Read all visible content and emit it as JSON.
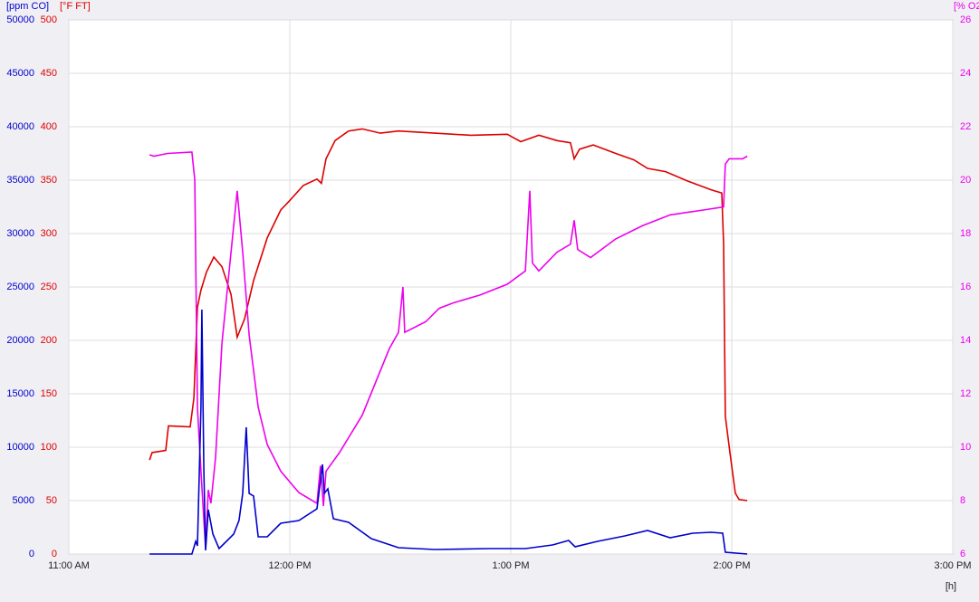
{
  "chart_data": {
    "type": "line",
    "y_label": "[ppm CO]",
    "y2_label": "[°F FT]",
    "y3_label": "[% O2",
    "x_label": "[h]",
    "xlim": [
      11,
      15
    ],
    "xticks": [
      {
        "value": 11,
        "label": "11:00 AM"
      },
      {
        "value": 12,
        "label": "12:00 PM"
      },
      {
        "value": 13,
        "label": "1:00 PM"
      },
      {
        "value": 14,
        "label": "2:00 PM"
      },
      {
        "value": 15,
        "label": "3:00 PM"
      }
    ],
    "ylim": [
      0,
      50000
    ],
    "yticks": [
      0,
      5000,
      10000,
      15000,
      20000,
      25000,
      30000,
      35000,
      40000,
      45000,
      50000
    ],
    "y_color": "#0000cc",
    "y2lim": [
      0,
      500
    ],
    "y2ticks": [
      0,
      50,
      100,
      150,
      200,
      250,
      300,
      350,
      400,
      450,
      500
    ],
    "y2_color": "#dd0000",
    "y3lim": [
      6,
      26
    ],
    "y3ticks": [
      6,
      8,
      10,
      12,
      14,
      16,
      18,
      20,
      22,
      24,
      26
    ],
    "y3_color": "#ee00ee",
    "grid": true,
    "series": [
      {
        "color": "#dd0000",
        "axis": "y2",
        "x": [
          11.365,
          11.377,
          11.4385,
          11.451,
          11.549,
          11.566,
          11.582,
          11.598,
          11.623,
          11.656,
          11.693,
          11.734,
          11.762,
          11.795,
          11.836,
          11.898,
          11.959,
          12.0,
          12.061,
          12.123,
          12.143,
          12.164,
          12.205,
          12.266,
          12.328,
          12.41,
          12.492,
          12.656,
          12.82,
          12.984,
          13.045,
          13.127,
          13.209,
          13.27,
          13.287,
          13.311,
          13.373,
          13.475,
          13.557,
          13.619,
          13.701,
          13.803,
          13.906,
          13.955,
          13.963,
          13.971,
          13.992,
          14.016,
          14.033,
          14.07
        ],
        "values": [
          88,
          95,
          97,
          120,
          119,
          146,
          231,
          247,
          264,
          278,
          269,
          243,
          203,
          220,
          256,
          296,
          322,
          331,
          345,
          351,
          347,
          370,
          387,
          396,
          398,
          394,
          396,
          394,
          392,
          393,
          386,
          392,
          387,
          385,
          370,
          379,
          383,
          375,
          369,
          361,
          358,
          349,
          341,
          338,
          290,
          129,
          95,
          57,
          51,
          50
        ]
      },
      {
        "color": "#ee00ee",
        "axis": "y3",
        "x": [
          11.365,
          11.385,
          11.447,
          11.557,
          11.57,
          11.582,
          11.598,
          11.619,
          11.631,
          11.643,
          11.664,
          11.693,
          11.734,
          11.762,
          11.787,
          11.816,
          11.857,
          11.898,
          11.959,
          12.041,
          12.123,
          12.139,
          12.152,
          12.164,
          12.225,
          12.328,
          12.451,
          12.492,
          12.512,
          12.52,
          12.615,
          12.676,
          12.738,
          12.861,
          12.984,
          13.066,
          13.086,
          13.098,
          13.127,
          13.209,
          13.27,
          13.287,
          13.303,
          13.361,
          13.475,
          13.598,
          13.721,
          13.885,
          13.963,
          13.971,
          13.988,
          14.049,
          14.07
        ],
        "values": [
          20.95,
          20.9,
          21.0,
          21.05,
          20.0,
          11.5,
          9.1,
          6.2,
          8.4,
          7.9,
          9.6,
          13.9,
          17.3,
          19.6,
          17.3,
          14.2,
          11.5,
          10.1,
          9.1,
          8.3,
          7.9,
          9.3,
          7.8,
          9.1,
          9.8,
          11.2,
          13.7,
          14.3,
          16.0,
          14.3,
          14.7,
          15.2,
          15.4,
          15.7,
          16.1,
          16.6,
          19.6,
          16.9,
          16.6,
          17.3,
          17.6,
          18.5,
          17.4,
          17.1,
          17.8,
          18.3,
          18.7,
          18.9,
          19.0,
          20.6,
          20.8,
          20.8,
          20.9
        ]
      },
      {
        "color": "#0000cc",
        "x": [
          11.365,
          11.557,
          11.574,
          11.582,
          11.598,
          11.602,
          11.611,
          11.619,
          11.631,
          11.652,
          11.68,
          11.713,
          11.746,
          11.77,
          11.787,
          11.803,
          11.816,
          11.836,
          11.857,
          11.898,
          11.959,
          12.041,
          12.123,
          12.148,
          12.156,
          12.172,
          12.197,
          12.266,
          12.369,
          12.492,
          12.656,
          12.902,
          13.066,
          13.189,
          13.262,
          13.291,
          13.393,
          13.516,
          13.619,
          13.721,
          13.824,
          13.906,
          13.959,
          13.971,
          14.07
        ],
        "values": [
          0,
          0,
          1186,
          763,
          13729,
          22881,
          7797,
          339,
          4153,
          1864,
          508,
          1186,
          1864,
          3136,
          5678,
          11864,
          5678,
          5424,
          1610,
          1610,
          2881,
          3136,
          4237,
          8390,
          5678,
          6102,
          3305,
          2966,
          1441,
          593,
          424,
          508,
          508,
          847,
          1271,
          678,
          1186,
          1695,
          2203,
          1525,
          1949,
          2034,
          1949,
          169,
          0
        ]
      }
    ]
  }
}
